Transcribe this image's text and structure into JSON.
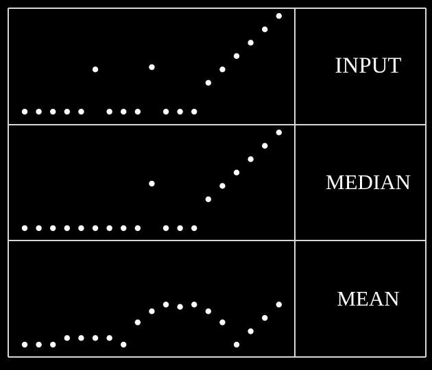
{
  "colors": {
    "background": "#000000",
    "foreground": "#ffffff",
    "grid": "#d8d8d8"
  },
  "rows": [
    {
      "label": "INPUT",
      "values": [
        0,
        0,
        0,
        0,
        0,
        1.9,
        0,
        0,
        0,
        2.0,
        0,
        0,
        0,
        1.3,
        1.9,
        2.5,
        3.1,
        3.7,
        4.3
      ]
    },
    {
      "label": "MEDIAN",
      "values": [
        0,
        0,
        0,
        0,
        0,
        0,
        0,
        0,
        0,
        2.0,
        0,
        0,
        0,
        1.3,
        1.9,
        2.5,
        3.1,
        3.7,
        4.3
      ]
    },
    {
      "label": "MEAN",
      "values": [
        0,
        0,
        0,
        0.3,
        0.3,
        0.3,
        0.3,
        0,
        1.0,
        1.5,
        1.8,
        1.7,
        1.8,
        1.5,
        1.0,
        0,
        0.6,
        1.2,
        1.8
      ]
    }
  ]
}
